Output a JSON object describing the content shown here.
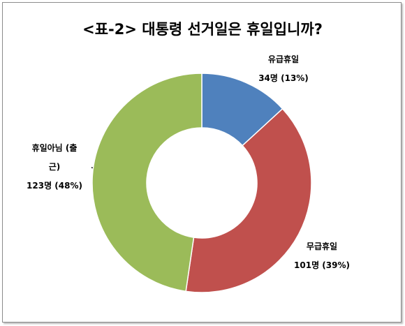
{
  "chart_data": {
    "type": "donut",
    "title": "<표-2> 대통령 선거일은 휴일입니까?",
    "categories": [
      "유급휴일",
      "무급휴일",
      "휴일아님 (출근)"
    ],
    "values": [
      34,
      101,
      123
    ],
    "value_labels": [
      "34명 (13%)",
      "101명 (39%)",
      "123명 (48%)"
    ],
    "colors": [
      "#4f81bd",
      "#c0504d",
      "#9bbb59"
    ]
  }
}
